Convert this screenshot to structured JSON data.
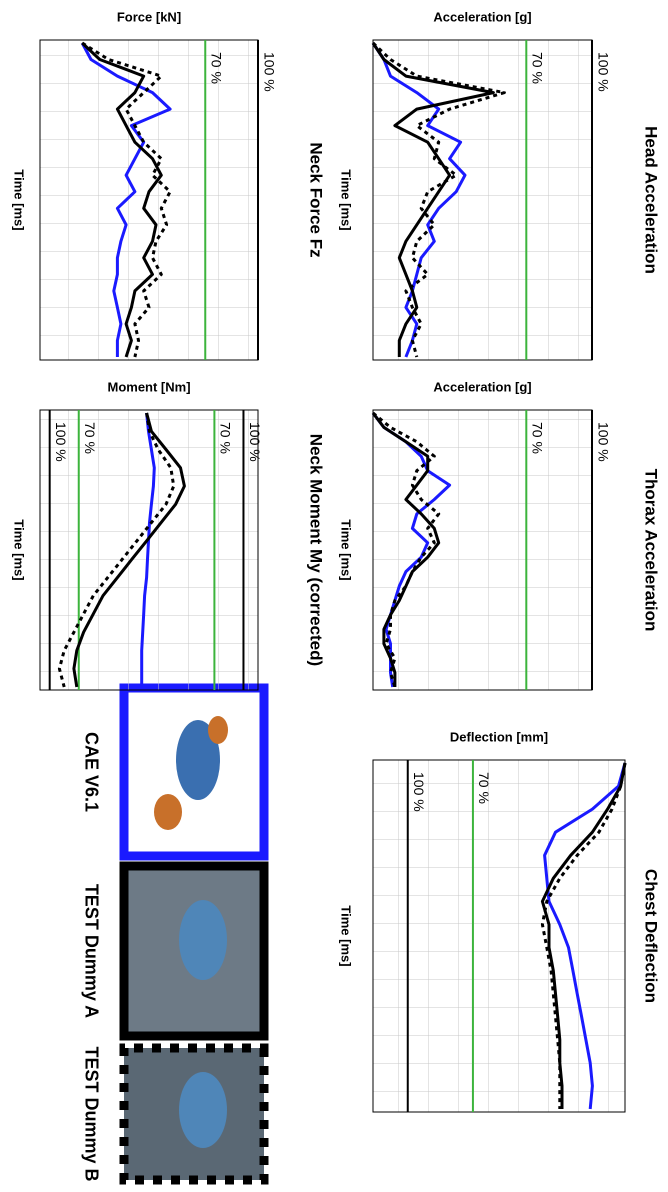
{
  "chart_data": [
    {
      "type": "line",
      "title": "Head Acceleration",
      "y_label": "Acceleration [g]",
      "x_label": "Time [ms]",
      "ylim": [
        0,
        100
      ],
      "yticks": [
        {
          "value": 70,
          "label": "70 %",
          "color": "#3cb43c"
        },
        {
          "value": 100,
          "label": "100 %",
          "color": "#000000"
        }
      ],
      "grid": true,
      "series": [
        {
          "name": "CAE V6.1",
          "color": "#1a1aff",
          "style": "solid",
          "values": [
            0,
            5,
            8,
            20,
            30,
            25,
            40,
            35,
            42,
            38,
            30,
            25,
            28,
            22,
            20,
            18,
            15,
            20,
            18,
            15
          ]
        },
        {
          "name": "TEST Dummy A",
          "color": "#000000",
          "style": "solid",
          "values": [
            0,
            5,
            15,
            55,
            20,
            10,
            25,
            30,
            35,
            30,
            25,
            20,
            15,
            12,
            15,
            18,
            20,
            15,
            12,
            12
          ]
        },
        {
          "name": "TEST Dummy B",
          "color": "#000000",
          "style": "dotted",
          "values": [
            0,
            8,
            20,
            60,
            35,
            20,
            30,
            28,
            38,
            25,
            22,
            28,
            20,
            18,
            25,
            15,
            18,
            22,
            18,
            20
          ]
        }
      ]
    },
    {
      "type": "line",
      "title": "Thorax Acceleration",
      "y_label": "Acceleration [g]",
      "x_label": "Time [ms]",
      "ylim": [
        0,
        100
      ],
      "yticks": [
        {
          "value": 70,
          "label": "70 %",
          "color": "#3cb43c"
        },
        {
          "value": 100,
          "label": "100 %",
          "color": "#000000"
        }
      ],
      "grid": true,
      "series": [
        {
          "name": "CAE V6.1",
          "color": "#1a1aff",
          "style": "solid",
          "values": [
            0,
            5,
            15,
            22,
            25,
            35,
            28,
            20,
            18,
            25,
            22,
            15,
            12,
            10,
            8,
            6,
            8,
            8,
            8,
            9
          ]
        },
        {
          "name": "TEST Dummy A",
          "color": "#000000",
          "style": "solid",
          "values": [
            0,
            5,
            15,
            25,
            25,
            20,
            15,
            22,
            28,
            30,
            25,
            18,
            15,
            12,
            8,
            5,
            5,
            8,
            10,
            10
          ]
        },
        {
          "name": "TEST Dummy B",
          "color": "#000000",
          "style": "dotted",
          "values": [
            0,
            8,
            20,
            28,
            20,
            18,
            22,
            30,
            25,
            28,
            22,
            18,
            15,
            10,
            8,
            8,
            6,
            10,
            8,
            10
          ]
        }
      ]
    },
    {
      "type": "line",
      "title": "Chest Deflection",
      "y_label": "Deflection [mm]",
      "x_label": "Time [ms]",
      "ylim": [
        116,
        0
      ],
      "yticks": [
        {
          "value": 70,
          "label": "70 %",
          "color": "#3cb43c"
        },
        {
          "value": 100,
          "label": "100 %",
          "color": "#000000"
        }
      ],
      "grid": true,
      "series": [
        {
          "name": "CAE V6.1",
          "color": "#1a1aff",
          "style": "solid",
          "values": [
            0,
            3,
            15,
            32,
            37,
            36,
            35,
            30,
            26,
            24,
            22,
            20,
            18,
            16,
            15,
            16
          ]
        },
        {
          "name": "TEST Dummy A",
          "color": "#000000",
          "style": "solid",
          "values": [
            0,
            2,
            8,
            15,
            25,
            33,
            38,
            35,
            35,
            33,
            32,
            31,
            30,
            30,
            29,
            29
          ]
        },
        {
          "name": "TEST Dummy B",
          "color": "#000000",
          "style": "dotted",
          "values": [
            0,
            2,
            6,
            12,
            22,
            30,
            36,
            38,
            36,
            34,
            33,
            32,
            31,
            30,
            30,
            30
          ]
        }
      ]
    },
    {
      "type": "line",
      "title": "Neck Force Fz",
      "y_label": "Force [kN]",
      "x_label": "Time [ms]",
      "ylim": [
        -24,
        100
      ],
      "yticks": [
        {
          "value": 70,
          "label": "70 %",
          "color": "#3cb43c"
        },
        {
          "value": 100,
          "label": "100 %",
          "color": "#000000"
        }
      ],
      "grid": true,
      "series": [
        {
          "name": "CAE V6.1",
          "color": "#1a1aff",
          "style": "solid",
          "values": [
            0,
            5,
            20,
            40,
            50,
            28,
            35,
            30,
            25,
            30,
            20,
            25,
            22,
            20,
            20,
            18,
            20,
            22,
            20,
            20
          ]
        },
        {
          "name": "TEST Dummy A",
          "color": "#000000",
          "style": "solid",
          "values": [
            0,
            10,
            35,
            30,
            20,
            25,
            30,
            40,
            45,
            38,
            35,
            42,
            40,
            35,
            40,
            30,
            28,
            25,
            28,
            25
          ]
        },
        {
          "name": "TEST Dummy B",
          "color": "#000000",
          "style": "dotted",
          "values": [
            0,
            15,
            45,
            35,
            25,
            30,
            35,
            45,
            40,
            50,
            45,
            48,
            42,
            40,
            45,
            35,
            38,
            30,
            32,
            30
          ]
        }
      ]
    },
    {
      "type": "line",
      "title": "Neck Moment My (corrected)",
      "y_label": "Moment [Nm]",
      "x_label": "Time [ms]",
      "ylim": [
        -110,
        115
      ],
      "yticks": [
        {
          "value": -100,
          "label": "100 %",
          "color": "#000000"
        },
        {
          "value": -70,
          "label": "70 %",
          "color": "#3cb43c"
        },
        {
          "value": 70,
          "label": "70 %",
          "color": "#3cb43c"
        },
        {
          "value": 100,
          "label": "100 %",
          "color": "#000000"
        }
      ],
      "grid": true,
      "series": [
        {
          "name": "CAE V6.1",
          "color": "#1a1aff",
          "style": "solid",
          "values": [
            0,
            2,
            5,
            8,
            7,
            5,
            3,
            2,
            1,
            0,
            -2,
            -3,
            -4,
            -5,
            -5,
            -5
          ]
        },
        {
          "name": "TEST Dummy A",
          "color": "#000000",
          "style": "solid",
          "values": [
            0,
            5,
            20,
            35,
            39,
            30,
            15,
            0,
            -15,
            -30,
            -45,
            -55,
            -65,
            -72,
            -75,
            -72
          ]
        },
        {
          "name": "TEST Dummy B",
          "color": "#000000",
          "style": "dotted",
          "values": [
            0,
            3,
            12,
            25,
            28,
            20,
            5,
            -10,
            -25,
            -40,
            -55,
            -65,
            -75,
            -85,
            -90,
            -85
          ]
        }
      ]
    }
  ]
}
